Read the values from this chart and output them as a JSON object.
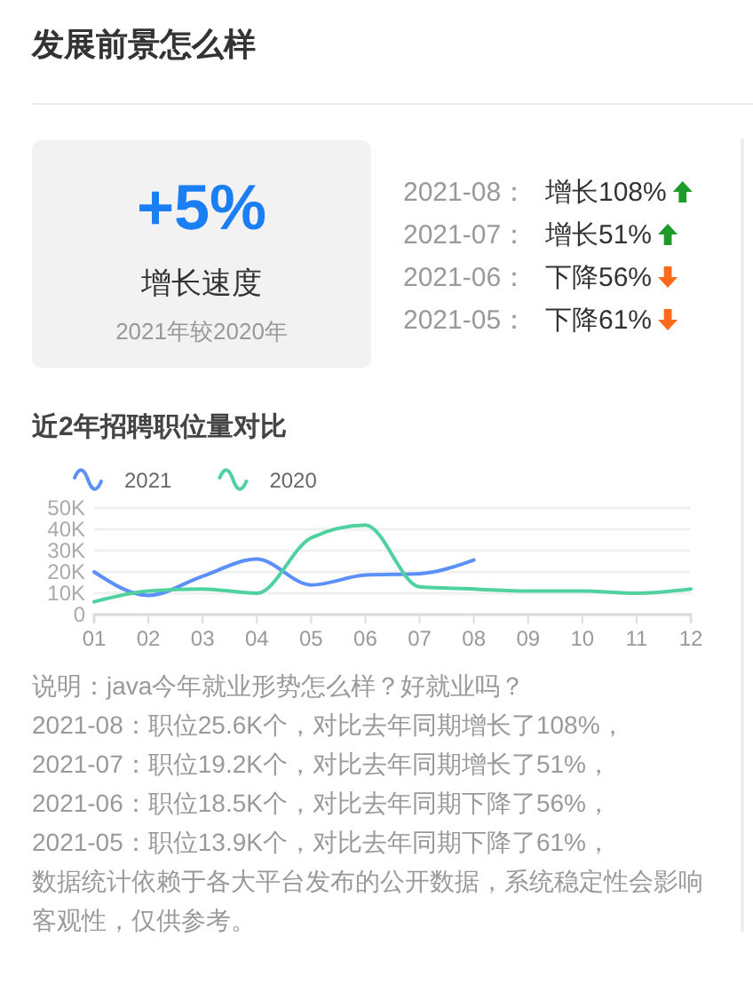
{
  "chart_data": [
    {
      "type": "other",
      "title": "发展前景怎么样",
      "annotations": [
        "+5%",
        "增长速度",
        "2021年较2020年",
        "2021-08：",
        "增长108%",
        "2021-07：",
        "增长51%",
        "2021-06：",
        "下降56%",
        "2021-05：",
        "下降61%"
      ]
    },
    {
      "type": "line",
      "title": "近2年招聘职位量对比",
      "categories": [
        "01",
        "02",
        "03",
        "04",
        "05",
        "06",
        "07",
        "08",
        "09",
        "10",
        "11",
        "12"
      ],
      "series": [
        {
          "name": "2021",
          "color": "#5b8ff9",
          "values": [
            20000,
            9000,
            18000,
            26000,
            13900,
            18500,
            19200,
            25600,
            null,
            null,
            null,
            null
          ]
        },
        {
          "name": "2020",
          "color": "#4fd1a0",
          "values": [
            6000,
            11000,
            12000,
            10000,
            36000,
            42000,
            13000,
            12000,
            11000,
            11000,
            10000,
            12000
          ]
        }
      ],
      "ylim": [
        0,
        50000
      ],
      "yticks": [
        0,
        {
          "value": 10000,
          "label": "10K"
        },
        {
          "value": 20000,
          "label": "20K"
        },
        {
          "value": 30000,
          "label": "30K"
        },
        {
          "value": 40000,
          "label": "40K"
        },
        {
          "value": 50000,
          "label": "50K"
        }
      ],
      "grid": "y",
      "legend": "top left",
      "line_style": "solid",
      "annotations": [
        "说明：java今年就业形势怎么样？好就业吗？",
        "2021-08：职位25.6K个，对比去年同期增长了108%，",
        "2021-07：职位19.2K个，对比去年同期增长了51%，",
        "2021-06：职位18.5K个，对比去年同期下降了56%，",
        "2021-05：职位13.9K个，对比去年同期下降了61%，",
        "数据统计依赖于各大平台发布的公开数据，系统稳定性会影响客观性，仅供参考。"
      ]
    }
  ]
}
